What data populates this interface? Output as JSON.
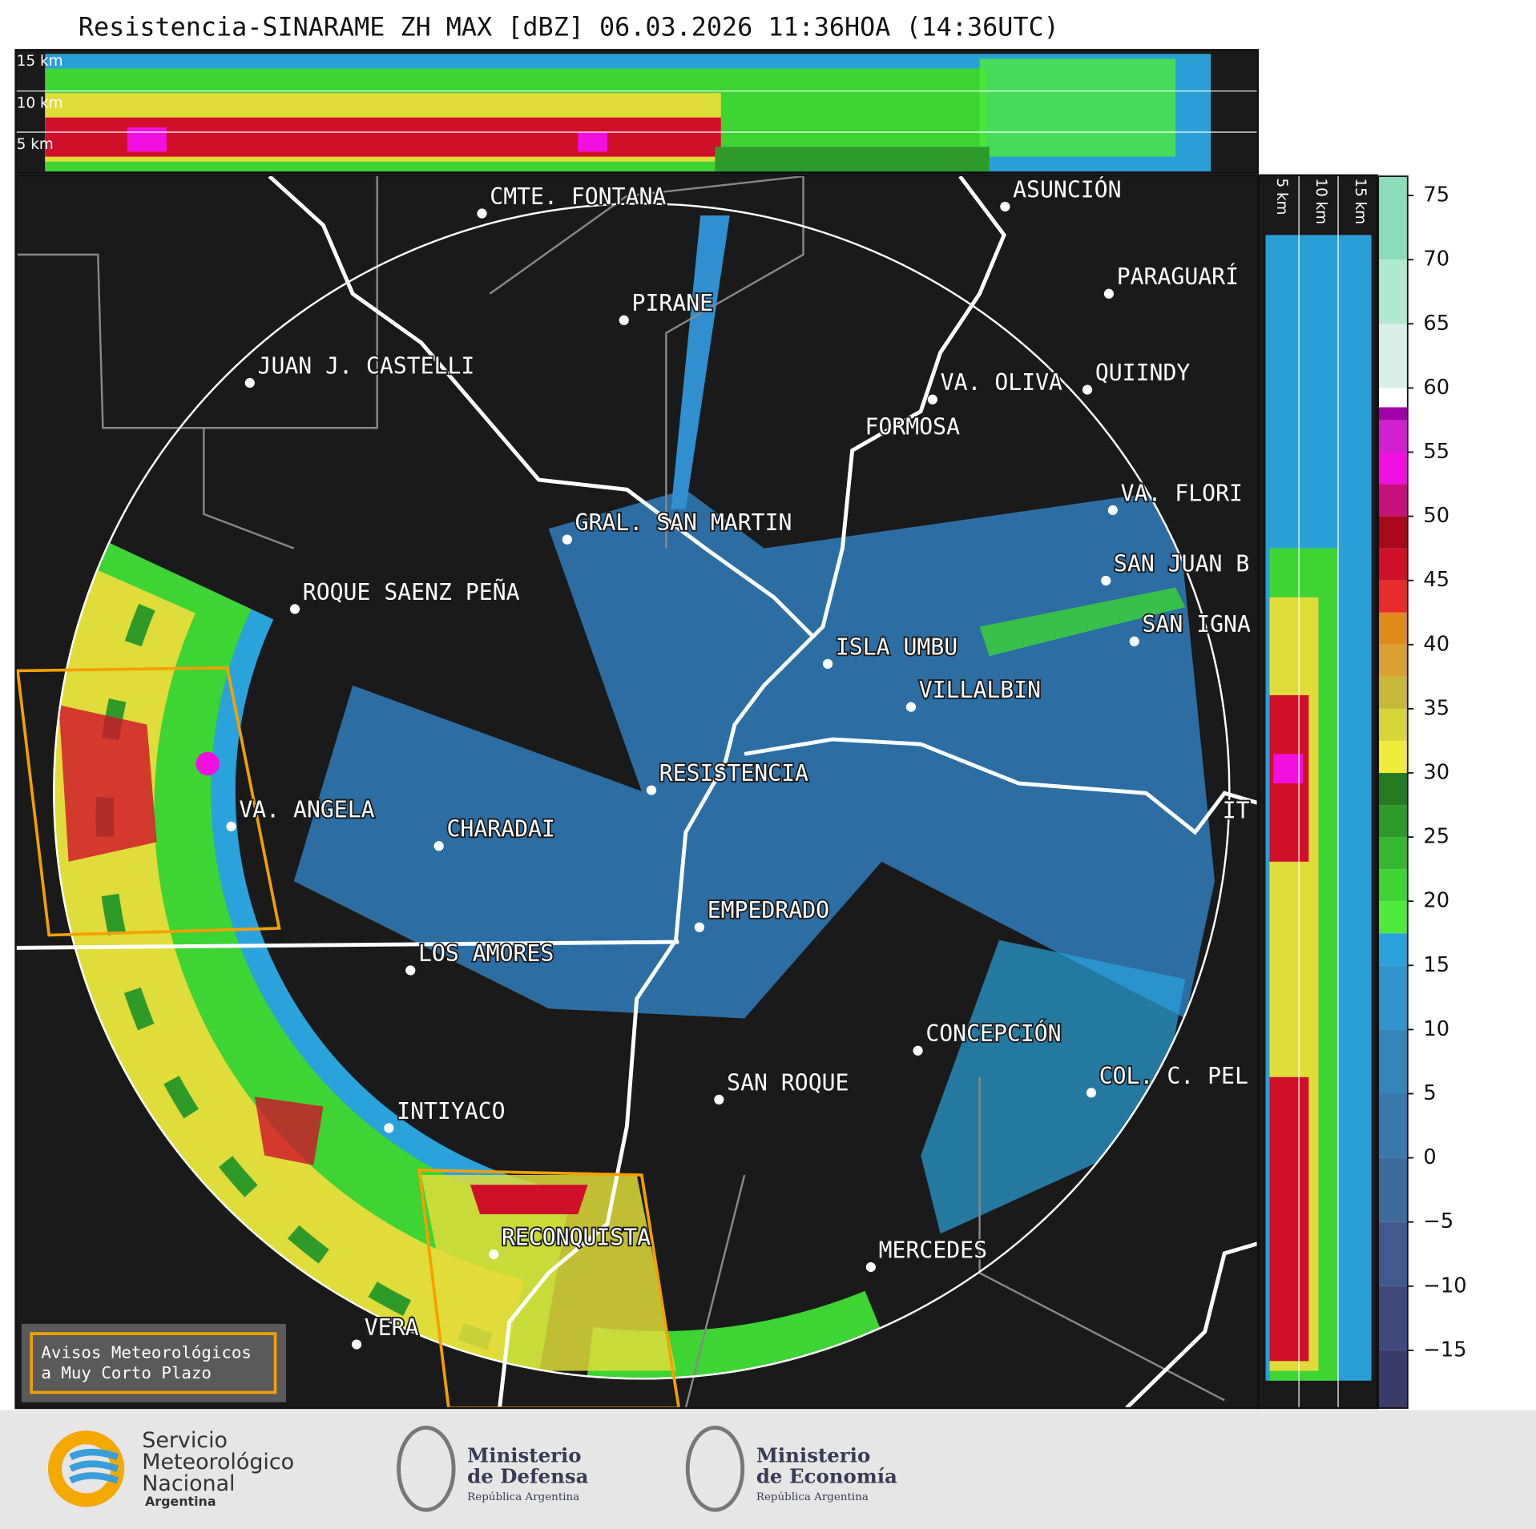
{
  "title": "Resistencia-SINARAME ZH MAX [dBZ] 06.03.2026 11:36HOA (14:36UTC)",
  "top_section_labels": [
    "15 km",
    "10 km",
    "5 km"
  ],
  "side_section_labels": [
    "5 km",
    "10 km",
    "15 km"
  ],
  "cities": [
    "CMTE. FONTANA",
    "PIRANE",
    "JUAN J. CASTELLI",
    "ASUNCIÓN",
    "PARAGUARÍ",
    "VA. OLIVA",
    "QUIINDY",
    "FORMOSA",
    "VA. FLORI",
    "GRAL. SAN MARTIN",
    "ROQUE SAENZ PEÑA",
    "SAN JUAN B",
    "SAN IGNA",
    "ISLA UMBU",
    "VILLALBIN",
    "RESISTENCIA",
    "IT",
    "VA. ANGELA",
    "CHARADAI",
    "EMPEDRADO",
    "LOS AMORES",
    "CONCEPCIÓN",
    "SAN ROQUE",
    "COL. C. PEL",
    "INTIYACO",
    "RECONQUISTA",
    "MERCEDES",
    "VERA"
  ],
  "colorbar": {
    "range": [
      -19.5,
      76.5
    ],
    "ticks": [
      {
        "value": -15,
        "label": "−15"
      },
      {
        "value": -10,
        "label": "−10"
      },
      {
        "value": -5,
        "label": "−5"
      },
      0,
      5,
      10,
      15,
      20,
      25,
      30,
      35,
      40,
      45,
      50,
      55,
      60,
      65,
      70,
      75
    ],
    "bands": [
      {
        "from": -19.5,
        "to": -15,
        "color": "#3a3d6a"
      },
      {
        "from": -15,
        "to": -10,
        "color": "#3f4a7c"
      },
      {
        "from": -10,
        "to": -5,
        "color": "#3f5a8c"
      },
      {
        "from": -5,
        "to": 0,
        "color": "#3d6a9c"
      },
      {
        "from": 0,
        "to": 5,
        "color": "#3a78ac"
      },
      {
        "from": 5,
        "to": 10,
        "color": "#3685ba"
      },
      {
        "from": 10,
        "to": 15,
        "color": "#2f95cc"
      },
      {
        "from": 15,
        "to": 17.5,
        "color": "#2aa3dc"
      },
      {
        "from": 17.5,
        "to": 20,
        "color": "#4eea3a"
      },
      {
        "from": 20,
        "to": 22.5,
        "color": "#3dd434"
      },
      {
        "from": 22.5,
        "to": 25,
        "color": "#36b830"
      },
      {
        "from": 25,
        "to": 27.5,
        "color": "#2e9a2a"
      },
      {
        "from": 27.5,
        "to": 30,
        "color": "#257a22"
      },
      {
        "from": 30,
        "to": 32.5,
        "color": "#f0ea3a"
      },
      {
        "from": 32.5,
        "to": 35,
        "color": "#d8d43a"
      },
      {
        "from": 35,
        "to": 37.5,
        "color": "#c8b83a"
      },
      {
        "from": 37.5,
        "to": 40,
        "color": "#d8a030"
      },
      {
        "from": 40,
        "to": 42.5,
        "color": "#e08a1c"
      },
      {
        "from": 42.5,
        "to": 45,
        "color": "#e82a2a"
      },
      {
        "from": 45,
        "to": 47.5,
        "color": "#d0102a"
      },
      {
        "from": 47.5,
        "to": 50,
        "color": "#a80818"
      },
      {
        "from": 50,
        "to": 52.5,
        "color": "#c8107a"
      },
      {
        "from": 52.5,
        "to": 55,
        "color": "#f010e0"
      },
      {
        "from": 55,
        "to": 57.5,
        "color": "#d020d0"
      },
      {
        "from": 57.5,
        "to": 58.5,
        "color": "#a000a8"
      },
      {
        "from": 58.5,
        "to": 60,
        "color": "#ffffff"
      },
      {
        "from": 60,
        "to": 65,
        "color": "#d8f0e8"
      },
      {
        "from": 65,
        "to": 70,
        "color": "#b0e8d0"
      },
      {
        "from": 70,
        "to": 76.5,
        "color": "#8cdcbc"
      }
    ]
  },
  "warning_legend": [
    "Avisos Meteorológicos",
    "a Muy Corto Plazo"
  ],
  "footer": {
    "smn": [
      "Servicio",
      "Meteorológico",
      "Nacional",
      "Argentina"
    ],
    "defensa": [
      "Ministerio",
      "de Defensa",
      "República Argentina"
    ],
    "economia": [
      "Ministerio",
      "de Economía",
      "República Argentina"
    ]
  }
}
